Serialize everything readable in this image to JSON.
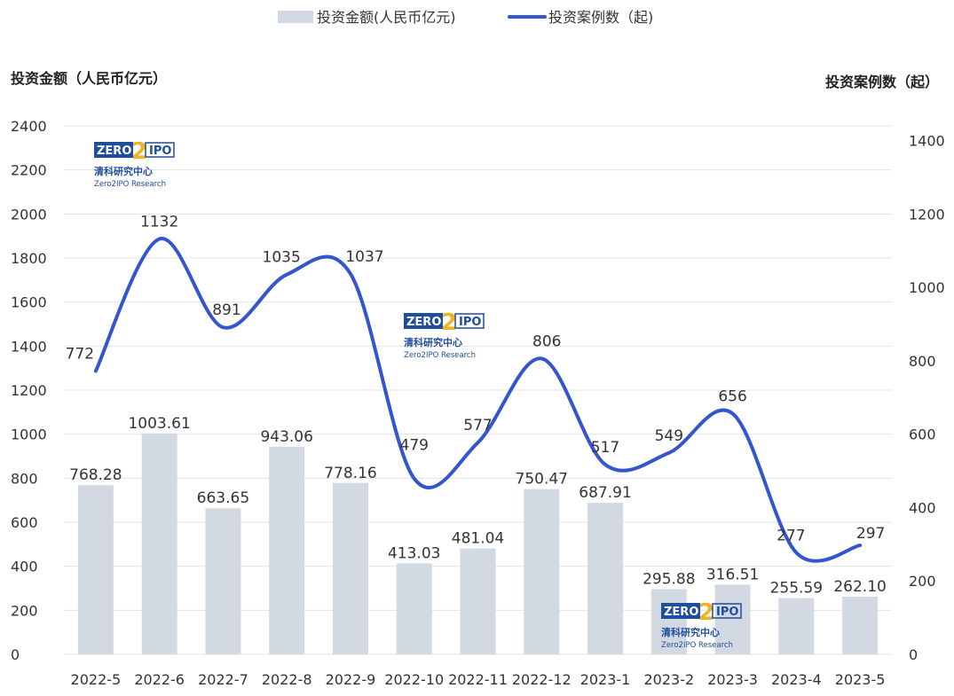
{
  "legend": {
    "bar_label": "投资金额(人民币亿元)",
    "line_label": "投资案例数（起)"
  },
  "left_axis_title": "投资金额（人民币亿元）",
  "right_axis_title": "投资案例数（起）",
  "watermark": {
    "box_text": "ZERO",
    "digit": "2",
    "suffix": "IPO",
    "cn": "清科研究中心",
    "en": "Zero2IPO Research"
  },
  "colors": {
    "bar": "#d3d9e3",
    "line": "#3355d0",
    "grid": "#e3e3e3",
    "logo_blue": "#1f4e9c",
    "logo_gold": "#f0b323"
  },
  "chart_data": {
    "type": "bar",
    "categories": [
      "2022-5",
      "2022-6",
      "2022-7",
      "2022-8",
      "2022-9",
      "2022-10",
      "2022-11",
      "2022-12",
      "2023-1",
      "2023-2",
      "2023-3",
      "2023-4",
      "2023-5"
    ],
    "series": [
      {
        "name": "投资金额(人民币亿元)",
        "type": "bar",
        "axis": "left",
        "values": [
          768.28,
          1003.61,
          663.65,
          943.06,
          778.16,
          413.03,
          481.04,
          750.47,
          687.91,
          295.88,
          316.51,
          255.59,
          262.1
        ],
        "labels": [
          "768.28",
          "1003.61",
          "663.65",
          "943.06",
          "778.16",
          "413.03",
          "481.04",
          "750.47",
          "687.91",
          "295.88",
          "316.51",
          "255.59",
          "262.10"
        ]
      },
      {
        "name": "投资案例数（起)",
        "type": "line",
        "axis": "right",
        "smooth": true,
        "values": [
          772,
          1132,
          891,
          1035,
          1037,
          479,
          577,
          806,
          517,
          549,
          656,
          277,
          297
        ],
        "labels": [
          "772",
          "1132",
          "891",
          "1035",
          "1037",
          "479",
          "577",
          "806",
          "517",
          "549",
          "656",
          "277",
          "297"
        ]
      }
    ],
    "left_axis": {
      "min": 0,
      "max": 2400,
      "ticks": [
        "0",
        "200",
        "400",
        "600",
        "800",
        "1000",
        "1200",
        "1400",
        "1600",
        "1800",
        "2000",
        "2200",
        "2400"
      ]
    },
    "right_axis": {
      "min": 0,
      "max": 1440,
      "ticks": [
        "0",
        "200",
        "400",
        "600",
        "800",
        "1000",
        "1200",
        "1400"
      ]
    },
    "grid": true,
    "legend_position": "top-center"
  }
}
